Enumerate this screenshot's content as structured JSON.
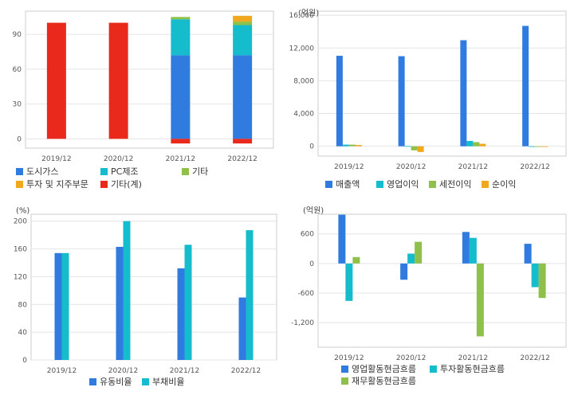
{
  "chart_data": [
    {
      "type": "bar",
      "stacked": true,
      "unit": "",
      "categories": [
        "2019/12",
        "2020/12",
        "2021/12",
        "2022/12"
      ],
      "ylim": [
        -8,
        110
      ],
      "yticks": [
        0,
        30,
        60,
        90
      ],
      "yticklabels": [
        "0",
        "30",
        "60",
        "90"
      ],
      "series": [
        {
          "name": "도시가스",
          "color": "#2f7bdf",
          "values": [
            0,
            0,
            72,
            72
          ]
        },
        {
          "name": "PC제조",
          "color": "#14bccc",
          "values": [
            0,
            0,
            31,
            26
          ]
        },
        {
          "name": "기타",
          "color": "#8fc04a",
          "values": [
            0,
            0,
            2,
            3
          ]
        },
        {
          "name": "투자 및 지주부문",
          "color": "#f0a81e",
          "values": [
            0,
            0,
            0,
            5
          ]
        },
        {
          "name": "기타(계)",
          "color": "#e8291c",
          "values": [
            100,
            100,
            -4,
            -4
          ]
        }
      ],
      "grid": true,
      "legend": "bottom"
    },
    {
      "type": "bar",
      "unit": "(억원)",
      "categories": [
        "2019/12",
        "2020/12",
        "2021/12",
        "2022/12"
      ],
      "ylim": [
        -1200,
        16500
      ],
      "yticks": [
        0,
        4000,
        8000,
        12000,
        16000
      ],
      "yticklabels": [
        "0",
        "4,000",
        "8,000",
        "12,000",
        "16,000"
      ],
      "series": [
        {
          "name": "매출액",
          "color": "#2f7bdf",
          "values": [
            11050,
            11000,
            12950,
            14700
          ]
        },
        {
          "name": "영업이익",
          "color": "#14bccc",
          "values": [
            200,
            20,
            650,
            -60
          ]
        },
        {
          "name": "세전이익",
          "color": "#8fc04a",
          "values": [
            200,
            -500,
            500,
            -40
          ]
        },
        {
          "name": "순이익",
          "color": "#f0a81e",
          "values": [
            150,
            -700,
            300,
            -30
          ]
        }
      ],
      "grid": true,
      "legend": "bottom"
    },
    {
      "type": "bar",
      "unit": "(%)",
      "categories": [
        "2019/12",
        "2020/12",
        "2021/12",
        "2022/12"
      ],
      "ylim": [
        0,
        210
      ],
      "yticks": [
        0,
        40,
        80,
        120,
        160,
        200
      ],
      "yticklabels": [
        "0",
        "40",
        "80",
        "120",
        "160",
        "200"
      ],
      "series": [
        {
          "name": "유동비율",
          "color": "#2f7bdf",
          "values": [
            154,
            163,
            132,
            90
          ]
        },
        {
          "name": "부채비율",
          "color": "#14bccc",
          "values": [
            154,
            200,
            166,
            187
          ]
        }
      ],
      "grid": true,
      "legend": "bottom"
    },
    {
      "type": "bar",
      "unit": "(억원)",
      "categories": [
        "2019/12",
        "2020/12",
        "2021/12",
        "2022/12"
      ],
      "ylim": [
        -1700,
        1000
      ],
      "yticks": [
        -1200,
        -600,
        0,
        600
      ],
      "yticklabels": [
        "-1,200",
        "-600",
        "0",
        "600"
      ],
      "series": [
        {
          "name": "영업활동현금흐름",
          "color": "#2f7bdf",
          "values": [
            990,
            -330,
            640,
            400
          ]
        },
        {
          "name": "투자활동현금흐름",
          "color": "#14bccc",
          "values": [
            -760,
            200,
            520,
            -480
          ]
        },
        {
          "name": "재무활동현금흐름",
          "color": "#8fc04a",
          "values": [
            130,
            440,
            -1480,
            -700
          ]
        }
      ],
      "grid": true,
      "legend": "bottom"
    }
  ]
}
